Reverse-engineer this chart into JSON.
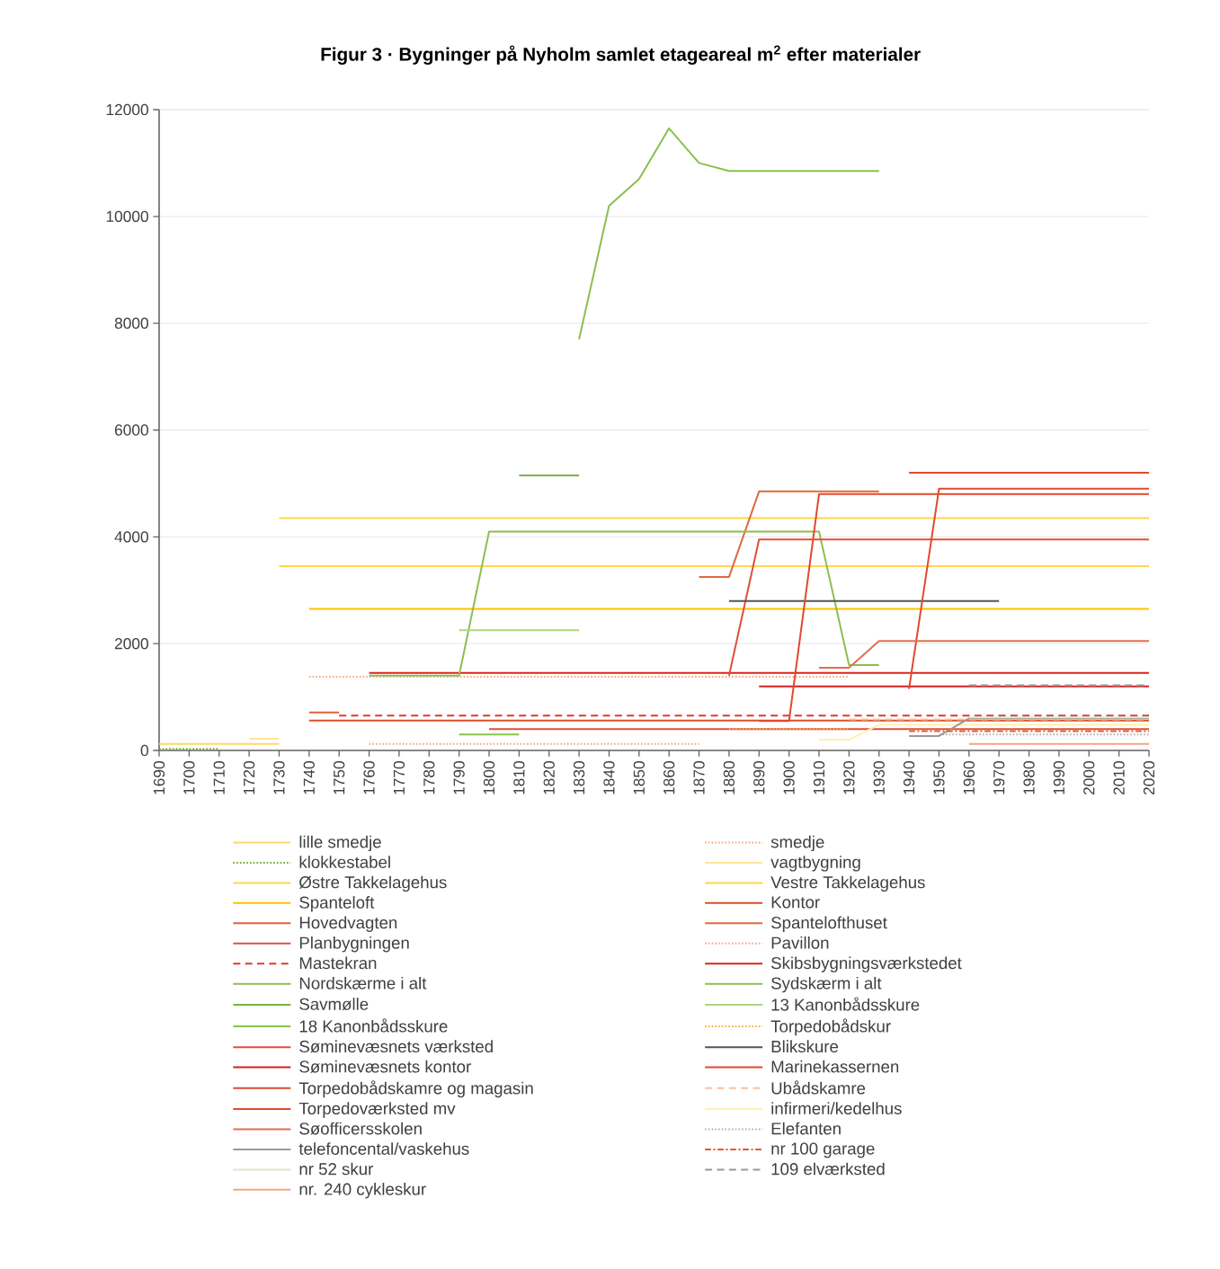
{
  "chart_data": {
    "type": "line",
    "title": "Figur 3 · Bygninger på Nyholm samlet etageareal m$^{2}$ efter materialer",
    "xlim": [
      1690,
      2020
    ],
    "xticks": [
      1690,
      1700,
      1710,
      1720,
      1730,
      1740,
      1750,
      1760,
      1770,
      1780,
      1790,
      1800,
      1810,
      1820,
      1830,
      1840,
      1850,
      1860,
      1870,
      1880,
      1890,
      1900,
      1910,
      1920,
      1930,
      1940,
      1950,
      1960,
      1970,
      1980,
      1990,
      2000,
      2010,
      2020
    ],
    "ylim": [
      0,
      12000
    ],
    "yticks": [
      0,
      2000,
      4000,
      6000,
      8000,
      10000,
      12000
    ],
    "grid": "y",
    "legend": "bottom",
    "series": [
      {
        "name": "lille smedje",
        "color": "#ffd966",
        "line_style": "solid",
        "x": [
          1690,
          1730
        ],
        "values": [
          120,
          120
        ]
      },
      {
        "name": "smedje",
        "color": "#f4a582",
        "line_style": "dotted",
        "x": [
          1740,
          1920
        ],
        "values": [
          1380,
          1380
        ]
      },
      {
        "name": "klokkestabel",
        "color": "#6aaa2a",
        "line_style": "dotted",
        "x": [
          1690,
          1710
        ],
        "values": [
          30,
          30
        ]
      },
      {
        "name": "vagtbygning",
        "color": "#ffe699",
        "line_style": "solid",
        "x": [
          1720,
          1730
        ],
        "values": [
          220,
          220
        ]
      },
      {
        "name": "Østre Takkelagehus",
        "color": "#ffd54f",
        "line_style": "solid",
        "x": [
          1730,
          2020
        ],
        "values": [
          4350,
          4350
        ]
      },
      {
        "name": "Vestre Takkelagehus",
        "color": "#ffd54f",
        "line_style": "solid",
        "x": [
          1730,
          2020
        ],
        "values": [
          3450,
          3450
        ]
      },
      {
        "name": "Spanteloft",
        "color": "#ffc000",
        "line_style": "solid",
        "x": [
          1740,
          2020
        ],
        "values": [
          2650,
          2650
        ]
      },
      {
        "name": "Kontor",
        "color": "#d9502a",
        "line_style": "solid",
        "x": [
          1740,
          2020
        ],
        "values": [
          560,
          560
        ]
      },
      {
        "name": "Hovedvagten",
        "color": "#e0603a",
        "line_style": "solid",
        "x": [
          1740,
          1750
        ],
        "values": [
          710,
          710
        ]
      },
      {
        "name": "Spantelofthuset",
        "color": "#e06a3b",
        "line_style": "solid",
        "x": [
          1870,
          1880,
          1890,
          1930
        ],
        "values": [
          3250,
          3250,
          4850,
          4850
        ]
      },
      {
        "name": "Planbygningen",
        "color": "#e0503a",
        "line_style": "solid",
        "x": [
          1800,
          2020
        ],
        "values": [
          400,
          400
        ]
      },
      {
        "name": "Pavillon",
        "color": "#f4a582",
        "line_style": "dotted",
        "x": [
          1760,
          1870
        ],
        "values": [
          120,
          120
        ]
      },
      {
        "name": "Mastekran",
        "color": "#e03a2a",
        "line_style": "dashed",
        "x": [
          1750,
          2020
        ],
        "values": [
          650,
          650
        ]
      },
      {
        "name": "Skibsbygningsværkstedet",
        "color": "#d9261c",
        "line_style": "solid",
        "x": [
          1760,
          2020
        ],
        "values": [
          1450,
          1450
        ]
      },
      {
        "name": "Nordskærme i alt",
        "color": "#8bbf4f",
        "line_style": "solid",
        "x": [
          1830,
          1840,
          1850,
          1860,
          1870,
          1880,
          1890,
          1900,
          1910,
          1920,
          1930
        ],
        "values": [
          7700,
          10200,
          10700,
          11650,
          11000,
          10850,
          10850,
          10850,
          10850,
          10850,
          10850
        ]
      },
      {
        "name": "Sydskærm i alt",
        "color": "#8bbf4f",
        "line_style": "solid",
        "x": [
          1760,
          1790,
          1800,
          1910,
          1920,
          1930
        ],
        "values": [
          1400,
          1400,
          4100,
          4100,
          1600,
          1600
        ]
      },
      {
        "name": "Savmølle",
        "color": "#7cb342",
        "line_style": "solid",
        "x": [
          1810,
          1830
        ],
        "values": [
          5150,
          5150
        ]
      },
      {
        "name": "13 Kanonbådsskure",
        "color": "#aed581",
        "line_style": "solid",
        "x": [
          1790,
          1830
        ],
        "values": [
          2250,
          2250
        ]
      },
      {
        "name": "18 Kanonbådsskure",
        "color": "#8bc34a",
        "line_style": "solid",
        "x": [
          1790,
          1810
        ],
        "values": [
          300,
          300
        ]
      },
      {
        "name": "Torpedobådskur",
        "color": "#f0b040",
        "line_style": "dotted",
        "x": [
          1880,
          1920
        ],
        "values": [
          400,
          400
        ]
      },
      {
        "name": "Søminevæsnets værksted",
        "color": "#e0503a",
        "line_style": "solid",
        "x": [
          1880,
          1890,
          2020
        ],
        "values": [
          1400,
          3950,
          3950
        ]
      },
      {
        "name": "Blikskure",
        "color": "#555555",
        "line_style": "solid",
        "x": [
          1880,
          1970
        ],
        "values": [
          2800,
          2800
        ]
      },
      {
        "name": "Søminevæsnets kontor",
        "color": "#d42020",
        "line_style": "solid",
        "x": [
          1890,
          2020
        ],
        "values": [
          1200,
          1200
        ]
      },
      {
        "name": "Marinekassernen",
        "color": "#e04a30",
        "line_style": "solid",
        "x": [
          1890,
          1900,
          1910,
          2020
        ],
        "values": [
          550,
          550,
          4800,
          4800
        ]
      },
      {
        "name": "Torpedobådskamre og magasin",
        "color": "#e04a30",
        "line_style": "solid",
        "x": [
          1940,
          1950,
          2020
        ],
        "values": [
          1150,
          4900,
          4900
        ]
      },
      {
        "name": "Ubådskamre",
        "color": "#f8c0a0",
        "line_style": "dashed",
        "x": [
          1920,
          2020
        ],
        "values": [
          580,
          580
        ]
      },
      {
        "name": "Torpedoværksted mv",
        "color": "#e04a30",
        "line_style": "solid",
        "x": [
          1940,
          2020
        ],
        "values": [
          5200,
          5200
        ]
      },
      {
        "name": "infirmeri/kedelhus",
        "color": "#fff0b0",
        "line_style": "solid",
        "x": [
          1910,
          1920,
          1930,
          2020
        ],
        "values": [
          200,
          200,
          480,
          480
        ]
      },
      {
        "name": "Søofficersskolen",
        "color": "#e07050",
        "line_style": "solid",
        "x": [
          1910,
          1920,
          1930,
          2020
        ],
        "values": [
          1550,
          1550,
          2050,
          2050
        ]
      },
      {
        "name": "Elefanten",
        "color": "#b0b0b0",
        "line_style": "dotted",
        "x": [
          1950,
          2020
        ],
        "values": [
          300,
          300
        ]
      },
      {
        "name": "telefoncental/vaskehus",
        "color": "#999999",
        "line_style": "solid",
        "x": [
          1940,
          1950,
          1960,
          2020
        ],
        "values": [
          270,
          270,
          600,
          600
        ]
      },
      {
        "name": "nr 100 garage",
        "color": "#e05a30",
        "line_style": "dashdot",
        "x": [
          1940,
          2020
        ],
        "values": [
          360,
          360
        ]
      },
      {
        "name": "nr 52 skur",
        "color": "#dde8c8",
        "line_style": "solid",
        "x": [
          1960,
          2020
        ],
        "values": [
          620,
          620
        ]
      },
      {
        "name": "109 elværksted",
        "color": "#999999",
        "line_style": "dashed",
        "x": [
          1960,
          2020
        ],
        "values": [
          1220,
          1220
        ]
      },
      {
        "name": "nr. 240 cykleskur",
        "color": "#f4a582",
        "line_style": "solid",
        "x": [
          1960,
          2020
        ],
        "values": [
          120,
          120
        ]
      }
    ]
  }
}
